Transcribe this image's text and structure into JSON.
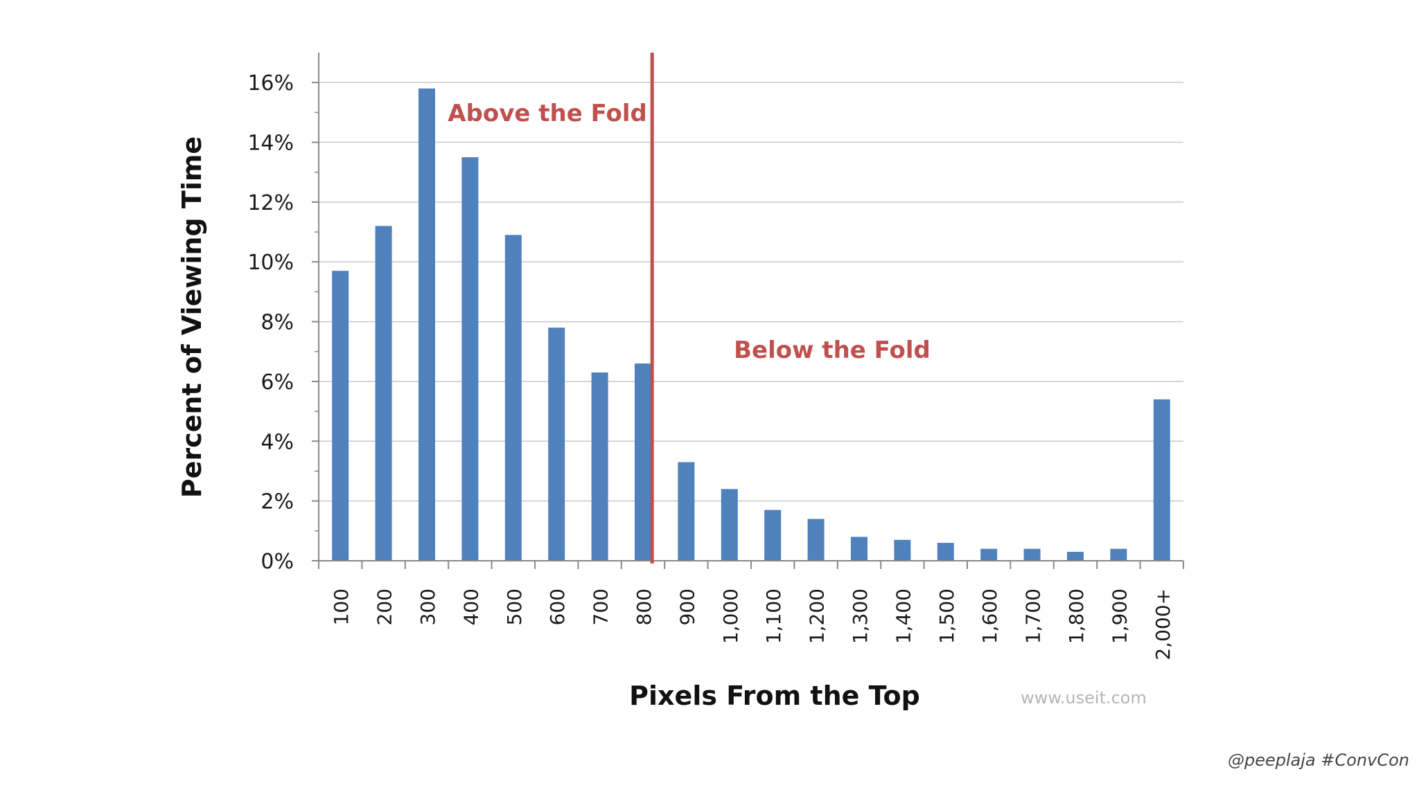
{
  "chart_data": {
    "type": "bar",
    "title": "",
    "xlabel": "Pixels From the Top",
    "ylabel": "Percent of Viewing Time",
    "categories": [
      "100",
      "200",
      "300",
      "400",
      "500",
      "600",
      "700",
      "800",
      "900",
      "1,000",
      "1,100",
      "1,200",
      "1,300",
      "1,400",
      "1,500",
      "1,600",
      "1,700",
      "1,800",
      "1,900",
      "2,000+"
    ],
    "series": [
      {
        "values": [
          9.7,
          11.2,
          15.8,
          13.5,
          10.9,
          7.8,
          6.3,
          6.6,
          3.3,
          2.4,
          1.7,
          1.4,
          0.8,
          0.7,
          0.6,
          0.4,
          0.4,
          0.3,
          0.4,
          5.4
        ],
        "color": "#4f81bd"
      }
    ],
    "ylim": [
      0,
      17
    ],
    "yticks": [
      0,
      2,
      4,
      6,
      8,
      10,
      12,
      14,
      16
    ],
    "ytick_labels": [
      "0%",
      "2%",
      "4%",
      "6%",
      "8%",
      "10%",
      "12%",
      "14%",
      "16%"
    ],
    "grid": true,
    "fold_line": {
      "after_category": "800",
      "color": "#c0504d"
    },
    "annotations": [
      {
        "text": "Above the Fold",
        "color": "#c0504d"
      },
      {
        "text": "Below the Fold",
        "color": "#c0504d"
      }
    ],
    "source_text": "www.useit.com"
  },
  "footer": {
    "credit": "@peeplaja #ConvCon"
  }
}
